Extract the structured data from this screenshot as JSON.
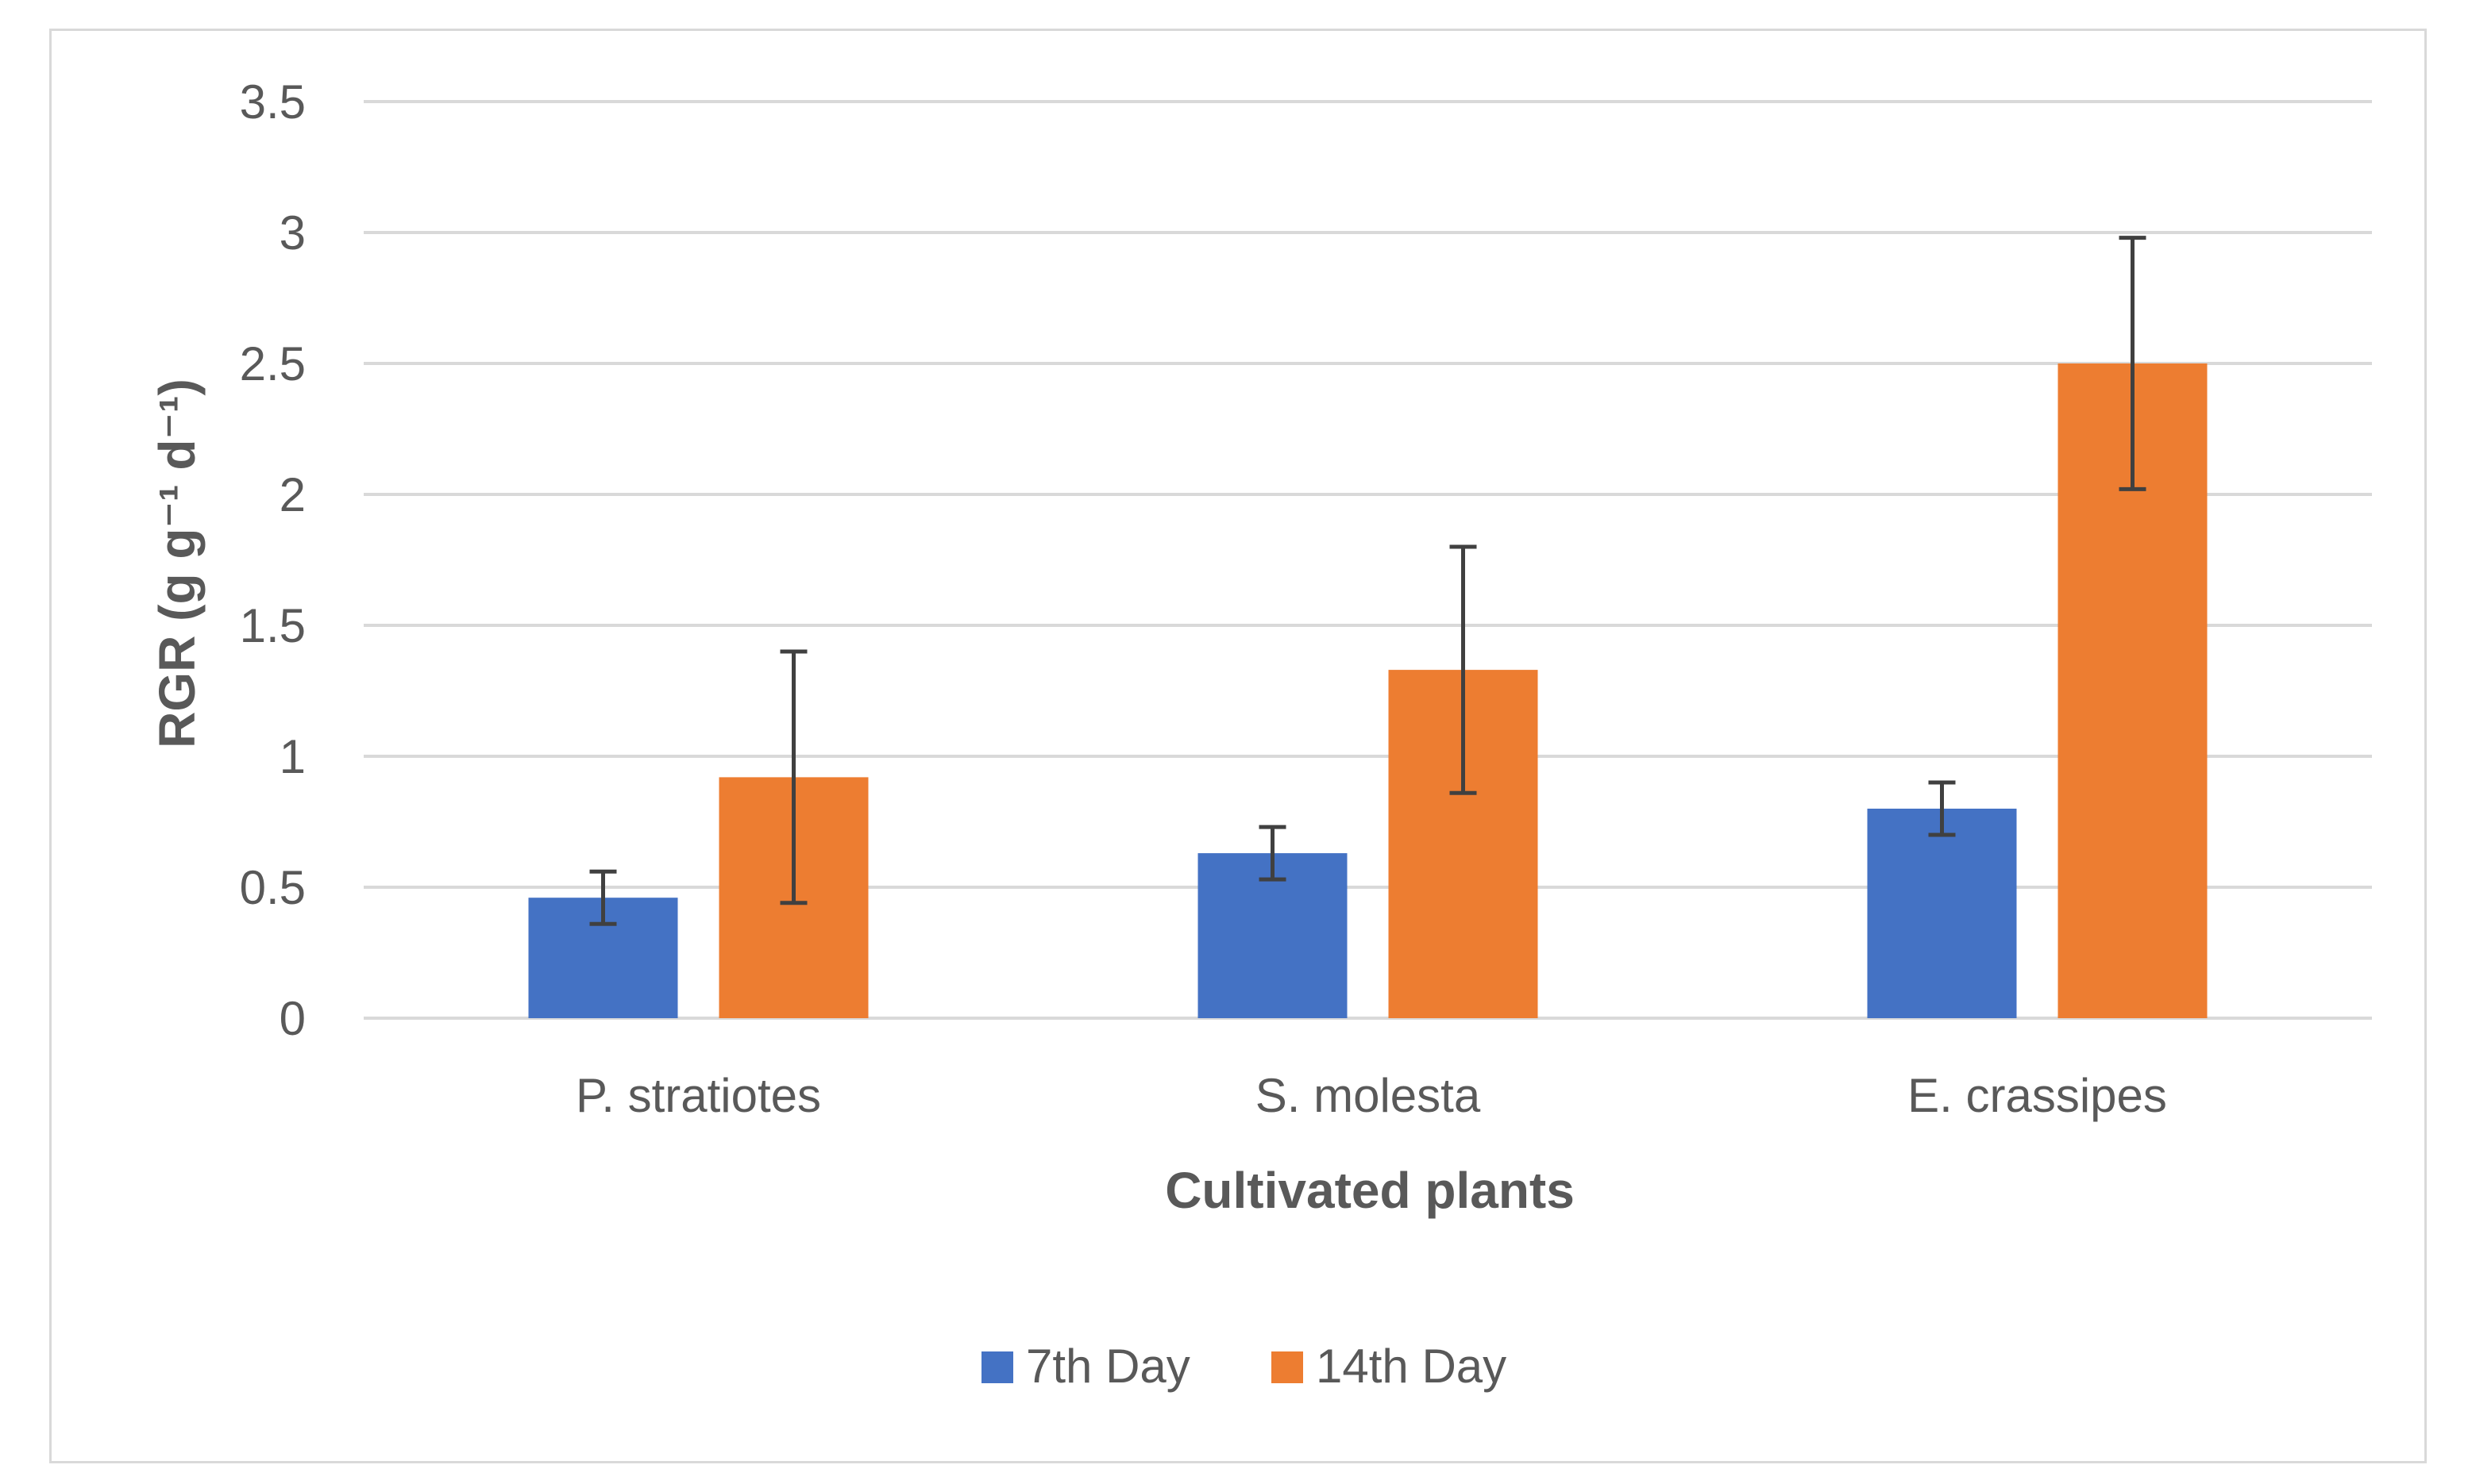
{
  "chart_data": {
    "type": "bar",
    "title": "",
    "xlabel": "Cultivated plants",
    "ylabel": "RGR (g g⁻¹ d⁻¹)",
    "ylim": [
      0,
      3.5
    ],
    "yticks": [
      0,
      0.5,
      1,
      1.5,
      2,
      2.5,
      3,
      3.5
    ],
    "ytick_labels": [
      "0",
      "0.5",
      "1",
      "1.5",
      "2",
      "2.5",
      "3",
      "3.5"
    ],
    "grid": true,
    "legend_position": "bottom-center",
    "categories": [
      "P. stratiotes",
      "S. molesta",
      "E. crassipes"
    ],
    "series": [
      {
        "name": "7th Day",
        "color": "#4472c4",
        "values": [
          0.46,
          0.63,
          0.8
        ],
        "error": [
          0.1,
          0.1,
          0.1
        ]
      },
      {
        "name": "14th Day",
        "color": "#ed7d31",
        "values": [
          0.92,
          1.33,
          2.5
        ],
        "error": [
          0.48,
          0.47,
          0.48
        ]
      }
    ],
    "colors": {
      "grid": "#d9d9d9",
      "axis_text": "#595959",
      "error_bar": "#404040"
    }
  }
}
